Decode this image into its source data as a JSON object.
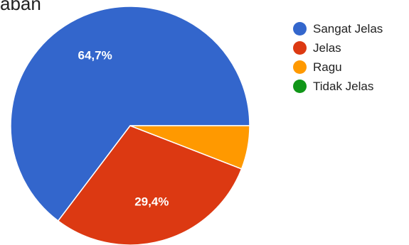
{
  "heading": "aban",
  "chart_data": {
    "type": "pie",
    "categories": [
      "Sangat Jelas",
      "Jelas",
      "Ragu",
      "Tidak Jelas"
    ],
    "values": [
      64.7,
      29.4,
      5.9,
      0
    ],
    "colors": [
      "#3366cc",
      "#dc3912",
      "#ff9900",
      "#109618"
    ],
    "data_labels": [
      "64,7%",
      "29,4%",
      "",
      ""
    ],
    "legend_position": "right",
    "start_angle_deg": 0
  },
  "legend": {
    "items": [
      {
        "label": "Sangat Jelas",
        "color": "#3366cc"
      },
      {
        "label": "Jelas",
        "color": "#dc3912"
      },
      {
        "label": "Ragu",
        "color": "#ff9900"
      },
      {
        "label": "Tidak Jelas",
        "color": "#109618"
      }
    ]
  }
}
